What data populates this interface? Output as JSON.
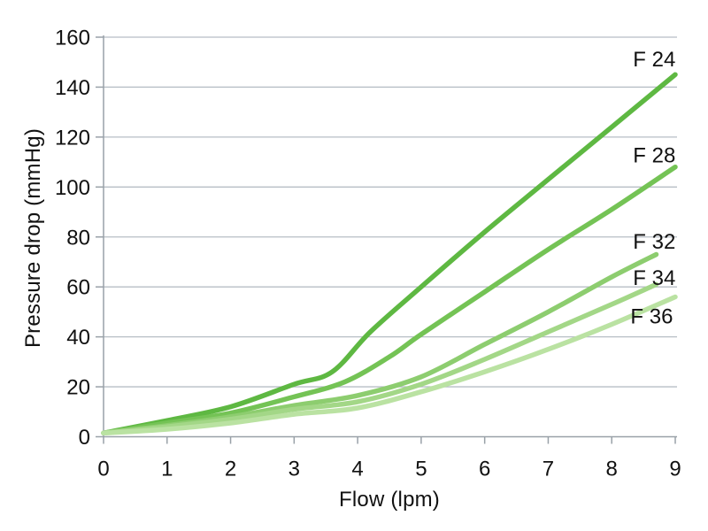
{
  "chart_data": {
    "type": "line",
    "title": "",
    "xlabel": "Flow (lpm)",
    "ylabel": "Pressure drop (mmHg)",
    "xlim": [
      0,
      9
    ],
    "ylim": [
      0,
      160
    ],
    "x_ticks": [
      0,
      1,
      2,
      3,
      4,
      5,
      6,
      7,
      8,
      9
    ],
    "y_ticks": [
      0,
      20,
      40,
      60,
      80,
      100,
      120,
      140,
      160
    ],
    "grid": "horizontal-only",
    "legend": "inline-labels-at-line-ends",
    "series": [
      {
        "name": "F 24",
        "color": "#5eb842",
        "label_at": [
          8.67,
          151.5
        ],
        "points": [
          [
            0,
            1.5
          ],
          [
            1,
            6.5
          ],
          [
            2,
            12
          ],
          [
            3,
            21
          ],
          [
            3.6,
            26
          ],
          [
            4.2,
            42
          ],
          [
            5,
            60
          ],
          [
            6,
            82
          ],
          [
            7,
            103
          ],
          [
            8,
            124
          ],
          [
            9,
            145
          ]
        ]
      },
      {
        "name": "F 28",
        "color": "#74c355",
        "label_at": [
          8.67,
          113
        ],
        "points": [
          [
            0,
            1.5
          ],
          [
            1,
            5.5
          ],
          [
            2,
            9.5
          ],
          [
            3,
            16
          ],
          [
            3.8,
            22
          ],
          [
            4.5,
            32
          ],
          [
            5,
            41
          ],
          [
            6,
            58
          ],
          [
            7,
            75
          ],
          [
            8,
            91
          ],
          [
            9,
            108
          ]
        ]
      },
      {
        "name": "F 32",
        "color": "#8dcd6f",
        "label_at": [
          8.67,
          78.5
        ],
        "points": [
          [
            0,
            1.5
          ],
          [
            1,
            4.5
          ],
          [
            2,
            8
          ],
          [
            3,
            12.5
          ],
          [
            4,
            16.5
          ],
          [
            5,
            24
          ],
          [
            6,
            37
          ],
          [
            7,
            50
          ],
          [
            8,
            64
          ],
          [
            8.7,
            73
          ]
        ]
      },
      {
        "name": "F 34",
        "color": "#a3d787",
        "label_at": [
          8.67,
          64
        ],
        "points": [
          [
            0,
            1.5
          ],
          [
            1,
            4
          ],
          [
            2,
            7
          ],
          [
            3,
            11
          ],
          [
            4,
            14
          ],
          [
            5,
            21
          ],
          [
            6,
            31
          ],
          [
            7,
            42
          ],
          [
            8,
            53
          ],
          [
            8.7,
            61
          ]
        ]
      },
      {
        "name": "F 36",
        "color": "#bae2a2",
        "label_at": [
          8.63,
          48.5
        ],
        "points": [
          [
            0,
            1.5
          ],
          [
            1,
            3
          ],
          [
            2,
            5.5
          ],
          [
            3,
            9
          ],
          [
            4,
            11.5
          ],
          [
            5,
            18
          ],
          [
            6,
            26
          ],
          [
            7,
            35
          ],
          [
            8,
            45
          ],
          [
            9,
            56
          ]
        ]
      }
    ]
  },
  "colors": {
    "background": "#ffffff",
    "grid": "#b7bec5",
    "axis": "#99a1a8",
    "text": "#111111"
  }
}
